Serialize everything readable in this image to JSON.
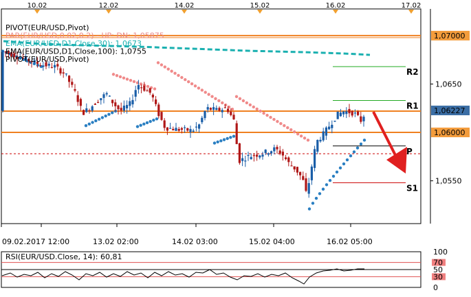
{
  "top_dates": [
    "10.02",
    "12.02",
    "14.02",
    "15.02",
    "16.02",
    "17.02"
  ],
  "bottom_dates": [
    "09.02.2017 12:00",
    "13.02 02:00",
    "14.02 03:00",
    "15.02 04:00",
    "16.02 05:00"
  ],
  "indicators": [
    {
      "text": "PIVOT(EUR/USD,Pivot)",
      "color": "#000000"
    },
    {
      "text": "PAR(EUR/USD,0.02,0.2) - UP: DN: 1,05875",
      "color": "#e98a8a"
    },
    {
      "text": "EMA(EUR/USD,D1,Close,30): 1,0673",
      "color": "#1ab0b0"
    },
    {
      "text": "EMA(EUR/USD,D1,Close,100): 1,0755",
      "color": "#000000"
    },
    {
      "text": "PIVOT(EUR/USD,Pivot)",
      "color": "#000000"
    }
  ],
  "price_axis": {
    "ticks": [
      "1,0650",
      "1,0550"
    ],
    "highlighted": [
      {
        "text": "1,07000",
        "bg": "#f39c3c"
      },
      {
        "text": "1,06227",
        "bg": "#3b6ea5"
      },
      {
        "text": "1,06000",
        "bg": "#f39c3c"
      }
    ]
  },
  "pivot_levels": [
    {
      "label": "R2",
      "price": 1.0668,
      "color": "#22aa22"
    },
    {
      "label": "R1",
      "price": 1.0633,
      "color": "#22aa22"
    },
    {
      "label": "P",
      "price": 1.0586,
      "color": "#000000"
    },
    {
      "label": "S1",
      "price": 1.0548,
      "color": "#cc0000"
    }
  ],
  "horizontal_lines": [
    {
      "price": 1.07,
      "color": "#f08020",
      "style": "solid"
    },
    {
      "price": 1.0622,
      "color": "#f08020",
      "style": "solid"
    },
    {
      "price": 1.06,
      "color": "#f08020",
      "style": "solid"
    },
    {
      "price": 1.0578,
      "color": "#cc0000",
      "style": "dashed"
    }
  ],
  "rsi": {
    "label": "RSI(EUR/USD.Close, 14): 60,81",
    "scale": [
      "100",
      "70",
      "50",
      "30",
      "0"
    ]
  },
  "chart_data": {
    "type": "candlestick",
    "symbol": "EUR/USD",
    "ylim": [
      1.0515,
      1.0712
    ],
    "indicators": {
      "parabolic_sar_dn": 1.05875,
      "ema_30": 1.0673,
      "ema_100": 1.0755,
      "rsi_14": 60.81
    },
    "last_price": 1.06227,
    "forecast": "down-arrow-toward-pivot-P"
  }
}
